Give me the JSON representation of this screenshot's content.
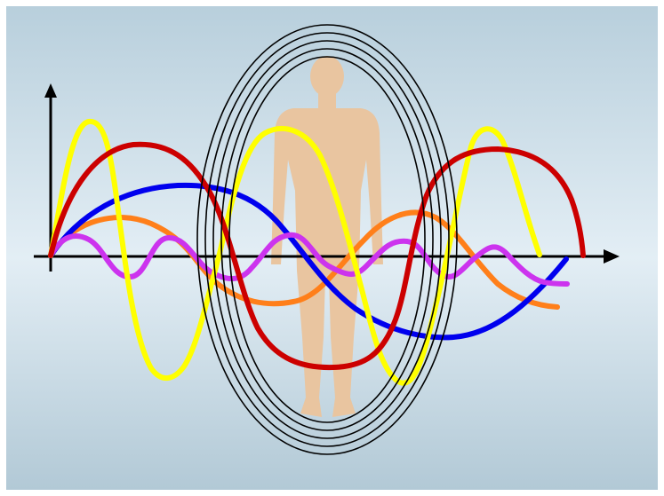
{
  "colors": {
    "background_top": "#b8cfdc",
    "background_mid": "#e3eef5",
    "background_bottom": "#b2c9d6",
    "axis": "#000000",
    "figure": "#e9c5a0",
    "rings": "#000000",
    "waves": {
      "yellow": "#ffff00",
      "red": "#cc0000",
      "blue": "#0000ee",
      "orange": "#ff7f1a",
      "magenta": "#cc33ee"
    }
  },
  "elements": {
    "figure": "human-silhouette-icon",
    "rings": "concentric-ellipse-rings",
    "axes": "xy-axes-with-arrows"
  }
}
